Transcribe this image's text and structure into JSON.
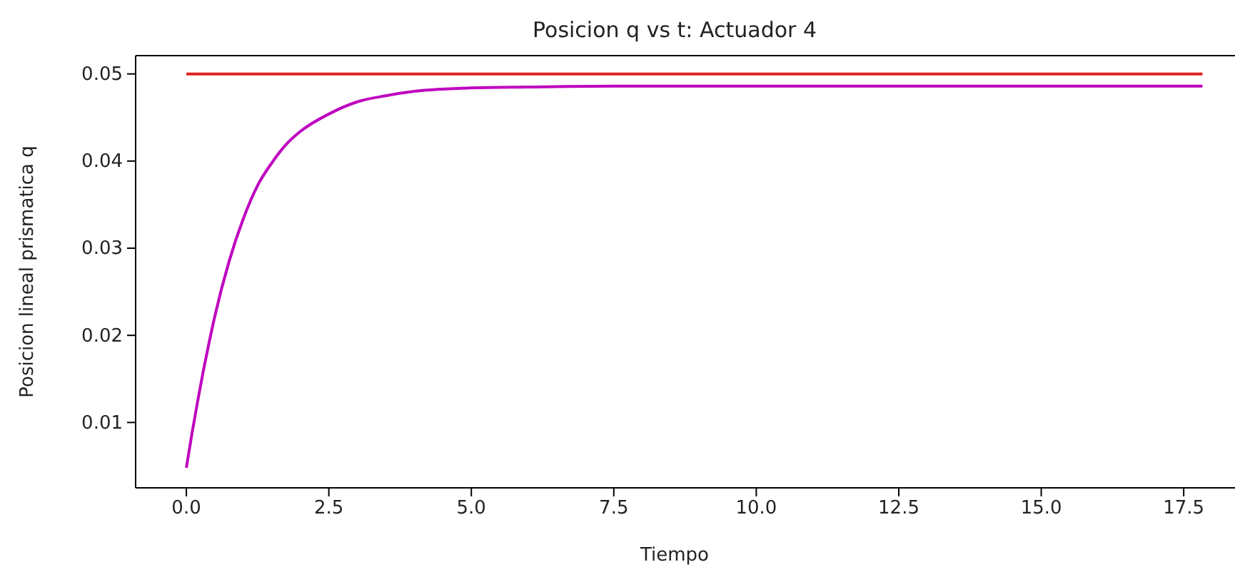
{
  "chart_data": {
    "type": "line",
    "title": "Posicion q vs t: Actuador 4",
    "xlabel": "Tiempo",
    "ylabel": "Posicion lineal prismatica q",
    "xlim": [
      -0.89,
      18.4
    ],
    "xticks": [
      {
        "value": 0,
        "label": "0.0"
      },
      {
        "value": 2.5,
        "label": "2.5"
      },
      {
        "value": 5,
        "label": "5.0"
      },
      {
        "value": 7.5,
        "label": "7.5"
      },
      {
        "value": 10,
        "label": "10.0"
      },
      {
        "value": 12.5,
        "label": "12.5"
      },
      {
        "value": 15,
        "label": "15.0"
      },
      {
        "value": 17.5,
        "label": "17.5"
      }
    ],
    "ylim": [
      0.0025,
      0.0521
    ],
    "yticks": [
      {
        "value": 0.01,
        "label": "0.01"
      },
      {
        "value": 0.02,
        "label": "0.02"
      },
      {
        "value": 0.03,
        "label": "0.03"
      },
      {
        "value": 0.04,
        "label": "0.04"
      },
      {
        "value": 0.05,
        "label": "0.05"
      }
    ],
    "grid": false,
    "series": [
      {
        "color": "#e02020",
        "x": [
          0,
          17.83
        ],
        "values": [
          0.05,
          0.05
        ]
      },
      {
        "color": "#bf00bf",
        "x": [
          0,
          0.1,
          0.2,
          0.3,
          0.4,
          0.5,
          0.75,
          1,
          1.25,
          1.5,
          1.75,
          2,
          2.5,
          3,
          3.5,
          4,
          5,
          6,
          7.5,
          10,
          12.5,
          15,
          17.83
        ],
        "values": [
          0.0048,
          0.0088,
          0.0125,
          0.016,
          0.0192,
          0.0222,
          0.0285,
          0.0334,
          0.0372,
          0.0398,
          0.0419,
          0.0434,
          0.0454,
          0.0468,
          0.0475,
          0.048,
          0.0484,
          0.0485,
          0.0486,
          0.0486,
          0.0486,
          0.0486,
          0.0486
        ]
      }
    ]
  }
}
